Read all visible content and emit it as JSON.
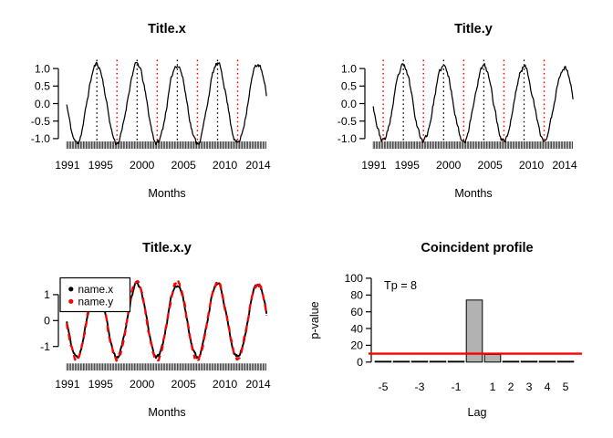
{
  "figure": {
    "background": "#ffffff",
    "text_color": "#000000",
    "accent_red": "#ff0000",
    "bar_gray": "#b2b2b2"
  },
  "chart_data": [
    {
      "panel": "top-left",
      "type": "line",
      "title": "Title.x",
      "xlabel": "Months",
      "x_domain": [
        1990.9,
        2015.1
      ],
      "x_tick_years": [
        1991,
        1995,
        2000,
        2005,
        2010,
        2014
      ],
      "x_tick_labels": [
        "1991",
        "1995",
        "2000",
        "2005",
        "2010",
        "2014"
      ],
      "y_tick_values": [
        1.0,
        0.5,
        0.0,
        -0.5,
        -1.0
      ],
      "y_tick_labels": [
        "1.0",
        "0.5",
        "0.0",
        "-0.5",
        "-1.0"
      ],
      "rug": {
        "unit": "months",
        "from": 1990.92,
        "to": 2015.08
      },
      "series": [
        {
          "name": "x",
          "color": "#000000",
          "line": "solid",
          "amplitude": 1.12,
          "period_years": 4.85,
          "zero_crossing_year": 1990.9,
          "start": 1990.92,
          "end": 2015.08,
          "samples_per_year": 12,
          "noise_amp": 0.09,
          "noise_seed": 11
        }
      ],
      "peak_lines": {
        "style": "dotted",
        "color": "#000000",
        "years": [
          1994.55,
          1999.4,
          2004.25,
          2009.1
        ]
      },
      "trough_lines": {
        "style": "dotted",
        "color": "#ff0000",
        "years": [
          1996.97,
          2001.82,
          2006.67,
          2011.52
        ]
      }
    },
    {
      "panel": "top-right",
      "type": "line",
      "title": "Title.y",
      "xlabel": "Months",
      "x_domain": [
        1990.9,
        2015.1
      ],
      "x_tick_years": [
        1991,
        1995,
        2000,
        2005,
        2010,
        2014
      ],
      "x_tick_labels": [
        "1991",
        "1995",
        "2000",
        "2005",
        "2010",
        "2014"
      ],
      "y_tick_values": [
        1.0,
        0.5,
        0.0,
        -0.5,
        -1.0
      ],
      "y_tick_labels": [
        "1.0",
        "0.5",
        "0.0",
        "-0.5",
        "-1.0"
      ],
      "rug": {
        "unit": "months",
        "from": 1990.92,
        "to": 2015.08
      },
      "series": [
        {
          "name": "y",
          "color": "#000000",
          "line": "solid",
          "amplitude": 1.05,
          "period_years": 4.85,
          "zero_crossing_year": 1990.9,
          "start": 1990.92,
          "end": 2015.08,
          "samples_per_year": 12,
          "noise_amp": 0.1,
          "noise_seed": 23
        }
      ],
      "peak_lines": {
        "style": "dotted",
        "color": "#000000",
        "years": [
          1994.55,
          1999.4,
          2004.25,
          2009.1
        ]
      },
      "trough_lines": {
        "style": "dotted",
        "color": "#ff0000",
        "years": [
          1992.12,
          1996.97,
          2001.82,
          2006.67,
          2011.52
        ]
      }
    },
    {
      "panel": "bottom-left",
      "type": "line",
      "title": "Title.x.y",
      "xlabel": "Months",
      "x_domain": [
        1990.9,
        2015.1
      ],
      "x_tick_years": [
        1991,
        1995,
        2000,
        2005,
        2010,
        2014
      ],
      "x_tick_labels": [
        "1991",
        "1995",
        "2000",
        "2005",
        "2010",
        "2014"
      ],
      "y_tick_values": [
        1,
        0,
        -1
      ],
      "y_tick_labels": [
        "1",
        "0",
        "-1"
      ],
      "rug": {
        "unit": "months",
        "from": 1990.92,
        "to": 2015.08
      },
      "series": [
        {
          "name": "name.x",
          "color": "#000000",
          "line": "solid",
          "amplitude": 1.4,
          "period_years": 4.85,
          "zero_crossing_year": 1990.9,
          "start": 1990.92,
          "end": 2015.08,
          "samples_per_year": 12,
          "noise_amp": 0.1,
          "noise_seed": 11
        },
        {
          "name": "name.y",
          "color": "#ff0000",
          "line": "dashed",
          "amplitude": 1.47,
          "period_years": 4.85,
          "zero_crossing_year": 1990.9,
          "start": 1990.92,
          "end": 2015.08,
          "samples_per_year": 12,
          "noise_amp": 0.12,
          "noise_seed": 23
        }
      ],
      "legend": {
        "position": "top-left",
        "entries": [
          {
            "label": "name.x",
            "color": "#000000"
          },
          {
            "label": "name.y",
            "color": "#ff0000"
          }
        ]
      }
    },
    {
      "panel": "bottom-right",
      "type": "bar",
      "title": "Coincident profile",
      "xlabel": "Lag",
      "ylabel": "p-value",
      "categories": [
        -5,
        -4,
        -3,
        -2,
        -1,
        0,
        1,
        2,
        3,
        4,
        5
      ],
      "values": [
        1,
        1,
        1,
        1,
        1,
        74,
        9,
        1,
        1,
        1,
        1
      ],
      "ylim": [
        0,
        100
      ],
      "y_tick_values": [
        0,
        20,
        40,
        60,
        80,
        100
      ],
      "y_tick_labels": [
        "0",
        "20",
        "40",
        "60",
        "80",
        "100"
      ],
      "x_tick_lags": [
        -5,
        -3,
        -1,
        1,
        2,
        3,
        4,
        5
      ],
      "x_tick_labels": [
        "-5",
        "-3",
        "-1",
        "1",
        "2",
        "3",
        "4",
        "5"
      ],
      "bar_fill": "#b2b2b2",
      "bar_stroke": "#000000",
      "significance_line": {
        "value": 10,
        "color": "#ff0000"
      },
      "annotation": {
        "text": "Tp = 8"
      }
    }
  ]
}
